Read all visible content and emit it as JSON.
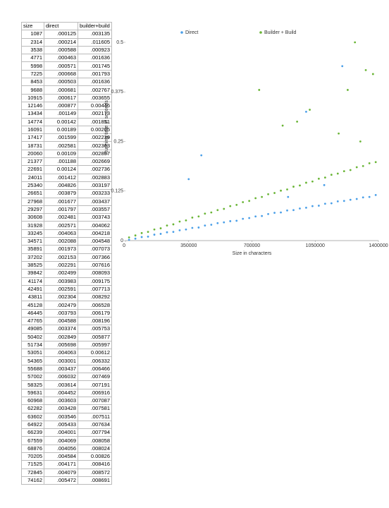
{
  "table": {
    "header": [
      "size",
      "direct",
      "builder+build"
    ],
    "rows": [
      [
        "1087",
        ".000125",
        ".003135"
      ],
      [
        "2314",
        ".000214",
        ".011605"
      ],
      [
        "3538",
        ".000588",
        ".000923"
      ],
      [
        "4771",
        ".000463",
        ".001636"
      ],
      [
        "5998",
        ".000571",
        ".001745"
      ],
      [
        "7225",
        ".000668",
        ".001793"
      ],
      [
        "8453",
        ".000503",
        ".001636"
      ],
      [
        "9688",
        ".000681",
        ".002767"
      ],
      [
        "10915",
        ".000617",
        ".003655"
      ],
      [
        "12146",
        ".000877",
        "0.00446"
      ],
      [
        "13434",
        ".001149",
        ".002173"
      ],
      [
        "14774",
        "0.00142",
        ".001851"
      ],
      [
        "16091",
        "0.00189",
        "0.00205"
      ],
      [
        "17417",
        ".001599",
        ".002239"
      ],
      [
        "18731",
        ".002581",
        ".002363"
      ],
      [
        "20060",
        "0.00109",
        ".002857"
      ],
      [
        "21377",
        ".001188",
        ".002669"
      ],
      [
        "22691",
        "0.00124",
        ".002736"
      ],
      [
        "24011",
        ".001412",
        ".002883"
      ],
      [
        "25340",
        ".004826",
        ".003197"
      ],
      [
        "26651",
        ".003879",
        ".003233"
      ],
      [
        "27968",
        ".001677",
        ".003437"
      ],
      [
        "29297",
        ".001797",
        ".003557"
      ],
      [
        "30608",
        ".002481",
        ".003743"
      ],
      [
        "31928",
        ".002571",
        ".004062"
      ],
      [
        "33245",
        ".004063",
        ".004218"
      ],
      [
        "34571",
        ".002088",
        ".004548"
      ],
      [
        "35891",
        ".001973",
        ".007073"
      ],
      [
        "37202",
        ".002153",
        ".007366"
      ],
      [
        "38525",
        ".002291",
        ".007616"
      ],
      [
        "39842",
        ".002499",
        ".008093"
      ],
      [
        "41174",
        ".003983",
        ".009175"
      ],
      [
        "42491",
        ".002591",
        ".007713"
      ],
      [
        "43811",
        ".002304",
        ".008292"
      ],
      [
        "45128",
        ".002479",
        ".006528"
      ],
      [
        "46445",
        ".003793",
        ".006179"
      ],
      [
        "47765",
        ".004588",
        ".008196"
      ],
      [
        "49085",
        ".003374",
        ".005753"
      ],
      [
        "50402",
        ".002849",
        ".005877"
      ],
      [
        "51734",
        ".005698",
        ".005997"
      ],
      [
        "53051",
        ".004063",
        "0.00612"
      ],
      [
        "54365",
        ".003001",
        ".006332"
      ],
      [
        "55688",
        ".003437",
        ".006466"
      ],
      [
        "57002",
        ".006032",
        ".007469"
      ],
      [
        "58325",
        ".003614",
        ".007191"
      ],
      [
        "59631",
        ".004452",
        ".006916"
      ],
      [
        "60968",
        ".003603",
        ".007087"
      ],
      [
        "62282",
        ".003428",
        ".007581"
      ],
      [
        "63602",
        ".003546",
        ".007511"
      ],
      [
        "64922",
        ".005433",
        ".007634"
      ],
      [
        "66239",
        ".004001",
        ".007794"
      ],
      [
        "67559",
        ".004069",
        ".008058"
      ],
      [
        "68876",
        ".004056",
        ".008024"
      ],
      [
        "70205",
        ".004584",
        "0.00826"
      ],
      [
        "71525",
        ".004171",
        ".008416"
      ],
      [
        "72845",
        ".004079",
        ".008572"
      ],
      [
        "74162",
        ".005472",
        ".008691"
      ]
    ]
  },
  "chart_data": {
    "type": "scatter",
    "xlabel": "Size in characters",
    "ylabel": "Running time in seconds",
    "xlim": [
      0,
      1400000
    ],
    "xticks": [
      0,
      350000,
      700000,
      1050000,
      1400000
    ],
    "ylim": [
      0,
      0.5
    ],
    "yticks": [
      0,
      0.125,
      0.25,
      0.375,
      0.5
    ],
    "legend": "top",
    "series": [
      {
        "name": "Direct",
        "color": "#4a9fe8",
        "x": [
          20000,
          55000,
          90000,
          125000,
          160000,
          195000,
          230000,
          265000,
          300000,
          335000,
          370000,
          405000,
          440000,
          475000,
          510000,
          545000,
          580000,
          615000,
          650000,
          685000,
          720000,
          755000,
          790000,
          825000,
          860000,
          895000,
          930000,
          965000,
          1000000,
          1035000,
          1070000,
          1105000,
          1140000,
          1175000,
          1210000,
          1245000,
          1280000,
          1315000,
          1350000,
          1385000,
          350000,
          420000,
          1000000,
          1200000,
          1100000,
          900000
        ],
        "values": [
          0.002,
          0.005,
          0.009,
          0.01,
          0.015,
          0.017,
          0.021,
          0.022,
          0.026,
          0.028,
          0.032,
          0.033,
          0.038,
          0.04,
          0.044,
          0.046,
          0.049,
          0.05,
          0.055,
          0.057,
          0.061,
          0.062,
          0.067,
          0.07,
          0.071,
          0.076,
          0.077,
          0.081,
          0.083,
          0.087,
          0.088,
          0.093,
          0.094,
          0.099,
          0.1,
          0.103,
          0.105,
          0.109,
          0.11,
          0.115,
          0.155,
          0.215,
          0.325,
          0.44,
          0.14,
          0.11
        ]
      },
      {
        "name": "Builder + Build",
        "color": "#6ab536",
        "x": [
          20000,
          55000,
          90000,
          125000,
          160000,
          195000,
          230000,
          265000,
          300000,
          335000,
          370000,
          405000,
          440000,
          475000,
          510000,
          545000,
          580000,
          615000,
          650000,
          685000,
          720000,
          755000,
          790000,
          825000,
          860000,
          895000,
          930000,
          965000,
          1000000,
          1035000,
          1070000,
          1105000,
          1140000,
          1175000,
          1210000,
          1245000,
          1280000,
          1315000,
          1350000,
          1385000,
          740000,
          1270000,
          1230000,
          1330000,
          1370000,
          1020000,
          870000,
          950000,
          1180000,
          1300000
        ],
        "values": [
          0.008,
          0.013,
          0.019,
          0.022,
          0.028,
          0.031,
          0.038,
          0.041,
          0.048,
          0.051,
          0.058,
          0.061,
          0.068,
          0.071,
          0.077,
          0.08,
          0.087,
          0.09,
          0.097,
          0.1,
          0.107,
          0.11,
          0.117,
          0.12,
          0.126,
          0.129,
          0.136,
          0.139,
          0.146,
          0.149,
          0.156,
          0.159,
          0.166,
          0.169,
          0.175,
          0.178,
          0.185,
          0.188,
          0.195,
          0.198,
          0.38,
          0.5,
          0.38,
          0.43,
          0.42,
          0.33,
          0.29,
          0.3,
          0.27,
          0.25
        ]
      }
    ]
  }
}
